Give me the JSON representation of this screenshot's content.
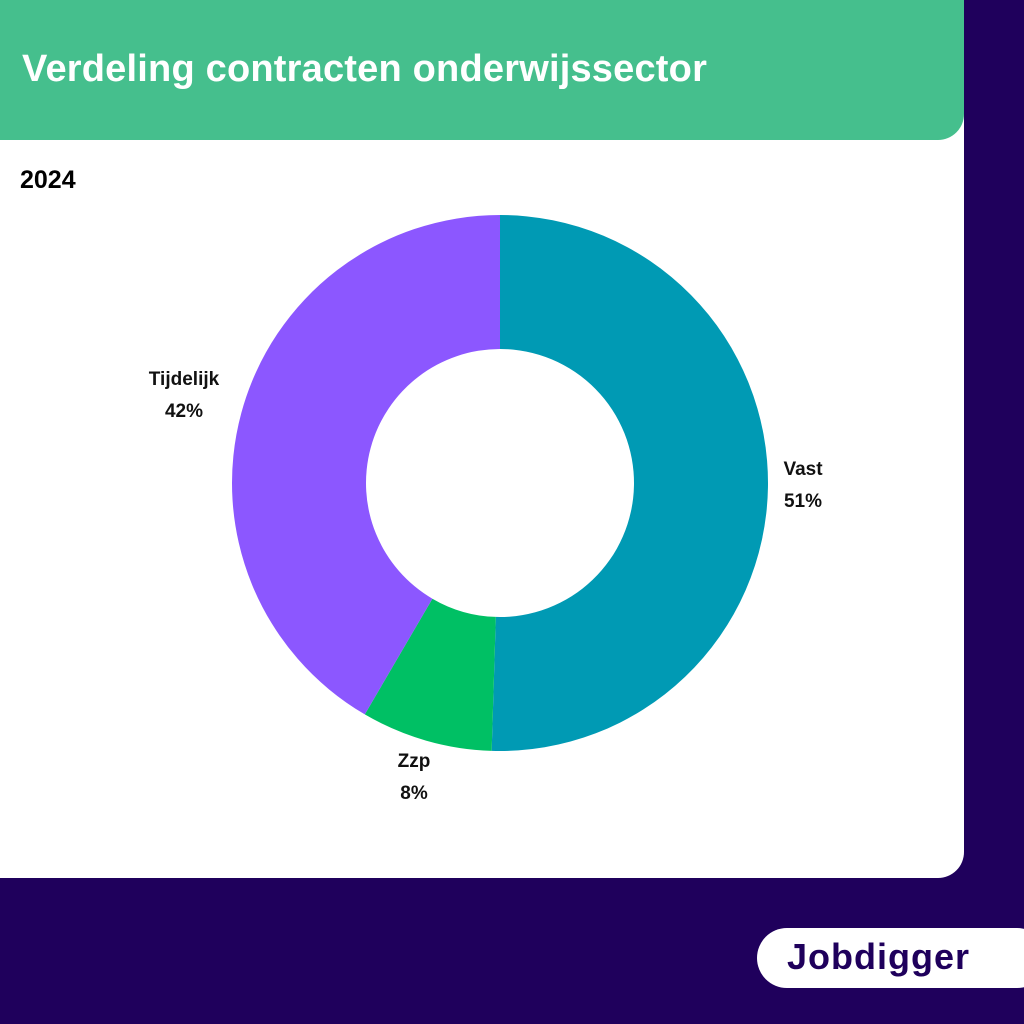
{
  "header": {
    "title": "Verdeling contracten onderwijssector"
  },
  "subtitle": "2024",
  "brand": {
    "logo_text": "Jobdigger"
  },
  "colors": {
    "background": "#1f005c",
    "header": "#45bf8d",
    "card": "#ffffff",
    "vast": "#009ab4",
    "zzp": "#00c064",
    "tijdelijk": "#8c57ff"
  },
  "chart_data": {
    "type": "pie",
    "variant": "donut",
    "title": "",
    "slices": [
      {
        "label": "Vast",
        "value": 51,
        "display": "51%",
        "color": "#009ab4"
      },
      {
        "label": "Zzp",
        "value": 8,
        "display": "8%",
        "color": "#00c064"
      },
      {
        "label": "Tijdelijk",
        "value": 42,
        "display": "42%",
        "color": "#8c57ff"
      }
    ],
    "start_angle": "12 o'clock",
    "direction": "clockwise",
    "legend": "none",
    "labels": "outside slices"
  }
}
